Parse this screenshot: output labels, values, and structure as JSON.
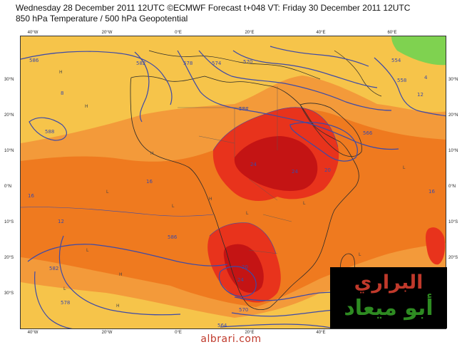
{
  "header": {
    "line1": "Wednesday 28 December 2011 12UTC ©ECMWF Forecast t+048 VT: Friday 30 December 2011 12UTC",
    "line2": "850 hPa Temperature / 500 hPa Geopotential"
  },
  "axes": {
    "lon_ticks": [
      "40°W",
      "20°W",
      "0°E",
      "20°E",
      "40°E",
      "60°E"
    ],
    "lat_ticks": [
      "30°N",
      "20°N",
      "10°N",
      "0°N",
      "10°S",
      "20°S",
      "30°S"
    ]
  },
  "colors": {
    "background": "#f6c44a",
    "warm_orange": "#f39a3a",
    "deep_orange": "#ef7a1f",
    "red": "#e8331c",
    "dark_red": "#c41414",
    "green": "#7fd250",
    "contour": "#3d4aa8",
    "coastline": "#2a2a2a"
  },
  "contour_labels": {
    "geopotential": [
      "586",
      "582",
      "578",
      "574",
      "570",
      "566",
      "562",
      "558",
      "564",
      "584",
      "588",
      "554"
    ],
    "temperature": [
      "4",
      "8",
      "12",
      "16",
      "20",
      "24"
    ]
  },
  "logo": {
    "word1": "البراري",
    "word2": "أبو ميعاد"
  },
  "footer": {
    "site": "albrari.com"
  }
}
